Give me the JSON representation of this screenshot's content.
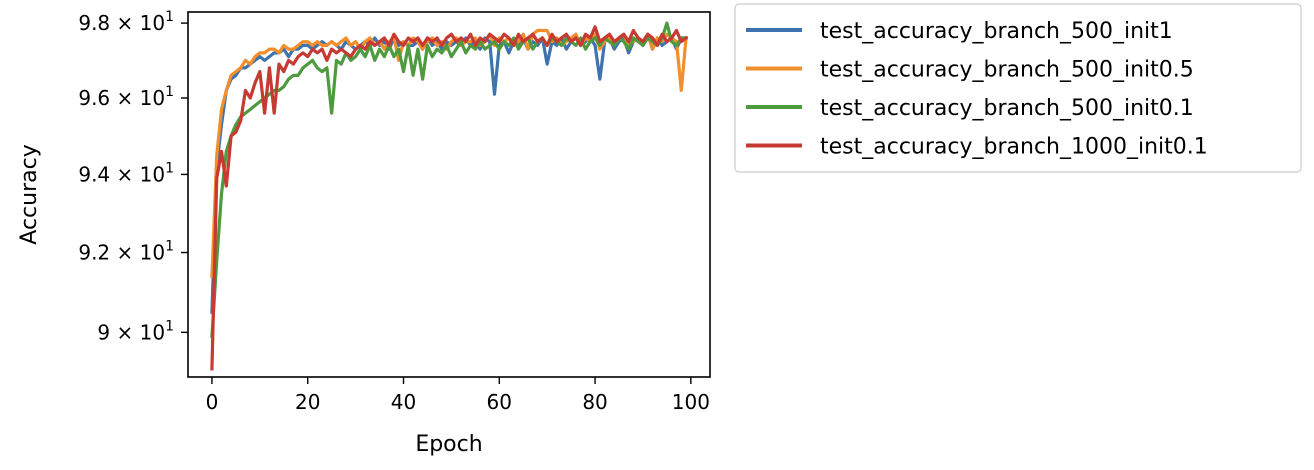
{
  "chart_data": {
    "type": "line",
    "title": "",
    "xlabel": "Epoch",
    "ylabel": "Accuracy",
    "y_scale": "log",
    "xlim": [
      -5,
      104
    ],
    "ylim": [
      88.9,
      98.3
    ],
    "grid": false,
    "legend_position": "outside-right-top",
    "x_ticks": [
      0,
      20,
      40,
      60,
      80,
      100
    ],
    "x_tick_labels": [
      "0",
      "20",
      "40",
      "60",
      "80",
      "100"
    ],
    "y_ticks": [
      90,
      92,
      94,
      96,
      98
    ],
    "y_tick_mantissas": [
      "9",
      "9.2",
      "9.4",
      "9.6",
      "9.8"
    ],
    "y_tick_base": "10",
    "y_tick_exponent": "1",
    "y_tick_times": "×",
    "series": [
      {
        "name": "test_accuracy_branch_500_init1",
        "color": "#3f73ae",
        "values": [
          90.5,
          94.2,
          95.3,
          96.2,
          96.5,
          96.6,
          96.8,
          96.8,
          96.9,
          97.0,
          97.1,
          97.0,
          97.1,
          97.2,
          97.2,
          97.3,
          97.1,
          97.3,
          97.3,
          97.4,
          97.4,
          97.3,
          97.4,
          97.5,
          97.4,
          97.5,
          97.4,
          97.3,
          97.5,
          97.4,
          97.3,
          97.4,
          97.5,
          97.4,
          97.6,
          97.4,
          97.5,
          97.3,
          97.6,
          97.4,
          97.5,
          97.4,
          97.4,
          97.5,
          97.3,
          97.6,
          97.4,
          97.5,
          97.3,
          97.5,
          97.4,
          97.5,
          97.4,
          97.6,
          97.4,
          97.5,
          97.3,
          97.6,
          97.5,
          96.1,
          97.4,
          97.5,
          97.2,
          97.5,
          97.4,
          97.6,
          97.3,
          97.5,
          97.4,
          97.6,
          96.9,
          97.5,
          97.4,
          97.6,
          97.3,
          97.5,
          97.6,
          97.4,
          97.5,
          97.6,
          97.4,
          96.5,
          97.5,
          97.6,
          97.3,
          97.5,
          97.6,
          97.2,
          97.5,
          97.6,
          97.4,
          97.7,
          97.3,
          97.6,
          97.4,
          97.5,
          97.6,
          97.3,
          97.6,
          97.6
        ]
      },
      {
        "name": "test_accuracy_branch_500_init0.5",
        "color": "#f28e2b",
        "values": [
          91.4,
          94.5,
          95.7,
          96.2,
          96.6,
          96.7,
          96.8,
          97.0,
          96.9,
          97.1,
          97.2,
          97.2,
          97.3,
          97.3,
          97.2,
          97.4,
          97.3,
          97.3,
          97.4,
          97.5,
          97.5,
          97.4,
          97.5,
          97.4,
          97.4,
          97.5,
          97.4,
          97.5,
          97.6,
          97.4,
          97.5,
          97.3,
          97.5,
          97.6,
          97.4,
          97.5,
          97.3,
          97.5,
          97.6,
          97.0,
          97.5,
          97.4,
          97.6,
          97.5,
          97.3,
          97.5,
          97.6,
          97.4,
          97.5,
          97.3,
          97.5,
          97.6,
          97.4,
          97.5,
          97.5,
          97.6,
          97.4,
          97.5,
          97.7,
          97.4,
          97.6,
          97.5,
          97.6,
          97.4,
          97.5,
          97.7,
          97.3,
          97.7,
          97.8,
          97.8,
          97.8,
          97.5,
          97.6,
          97.4,
          97.5,
          97.6,
          97.7,
          97.4,
          97.6,
          97.5,
          97.7,
          97.3,
          97.5,
          97.6,
          97.4,
          97.6,
          97.7,
          97.4,
          97.5,
          97.6,
          97.5,
          97.7,
          97.3,
          97.6,
          97.5,
          97.7,
          97.6,
          97.5,
          96.2,
          97.6
        ]
      },
      {
        "name": "test_accuracy_branch_500_init0.1",
        "color": "#4e9a3f",
        "values": [
          89.9,
          91.8,
          93.5,
          94.6,
          95.0,
          95.3,
          95.5,
          95.6,
          95.7,
          95.8,
          95.9,
          96.0,
          96.1,
          96.2,
          96.2,
          96.3,
          96.5,
          96.6,
          96.6,
          96.8,
          96.9,
          97.0,
          96.8,
          96.7,
          96.8,
          95.6,
          97.0,
          96.9,
          97.2,
          97.0,
          97.1,
          97.3,
          97.1,
          97.4,
          97.0,
          97.3,
          97.1,
          97.4,
          97.1,
          97.3,
          96.7,
          97.4,
          96.6,
          97.3,
          96.5,
          97.4,
          97.1,
          97.3,
          97.2,
          97.4,
          97.1,
          97.3,
          97.5,
          97.2,
          97.4,
          97.3,
          97.5,
          97.3,
          97.4,
          97.5,
          97.3,
          97.5,
          97.4,
          97.6,
          97.3,
          97.5,
          97.6,
          97.3,
          97.5,
          97.6,
          97.4,
          97.6,
          97.5,
          97.4,
          97.6,
          97.5,
          97.4,
          97.6,
          97.3,
          97.5,
          97.6,
          97.4,
          97.6,
          97.5,
          97.4,
          97.6,
          97.5,
          97.3,
          97.6,
          97.5,
          97.4,
          97.6,
          97.5,
          97.4,
          97.6,
          98.0,
          97.5,
          97.4,
          97.6,
          97.6
        ]
      },
      {
        "name": "test_accuracy_branch_1000_init0.1",
        "color": "#c73a32",
        "values": [
          89.1,
          93.9,
          94.6,
          93.7,
          95.0,
          95.1,
          95.4,
          96.2,
          96.0,
          96.4,
          96.7,
          95.6,
          96.8,
          95.6,
          96.9,
          96.7,
          97.0,
          96.9,
          97.1,
          97.2,
          97.1,
          97.3,
          97.2,
          97.3,
          97.0,
          97.3,
          97.2,
          97.3,
          97.2,
          97.1,
          97.3,
          97.4,
          97.3,
          97.5,
          97.4,
          97.5,
          97.6,
          97.4,
          97.7,
          97.5,
          97.4,
          97.6,
          97.5,
          97.6,
          97.4,
          97.6,
          97.5,
          97.6,
          97.4,
          97.6,
          97.7,
          97.5,
          97.6,
          97.5,
          97.7,
          97.4,
          97.6,
          97.5,
          97.7,
          97.6,
          97.5,
          97.7,
          97.6,
          97.4,
          97.7,
          97.5,
          97.6,
          97.7,
          97.5,
          97.6,
          97.4,
          97.7,
          97.5,
          97.6,
          97.7,
          97.5,
          97.6,
          97.4,
          97.7,
          97.6,
          97.9,
          97.5,
          97.6,
          97.7,
          97.5,
          97.6,
          97.7,
          97.5,
          97.8,
          97.6,
          97.5,
          97.7,
          97.6,
          97.4,
          97.7,
          97.5,
          97.6,
          97.8,
          97.5,
          97.6
        ]
      }
    ]
  }
}
